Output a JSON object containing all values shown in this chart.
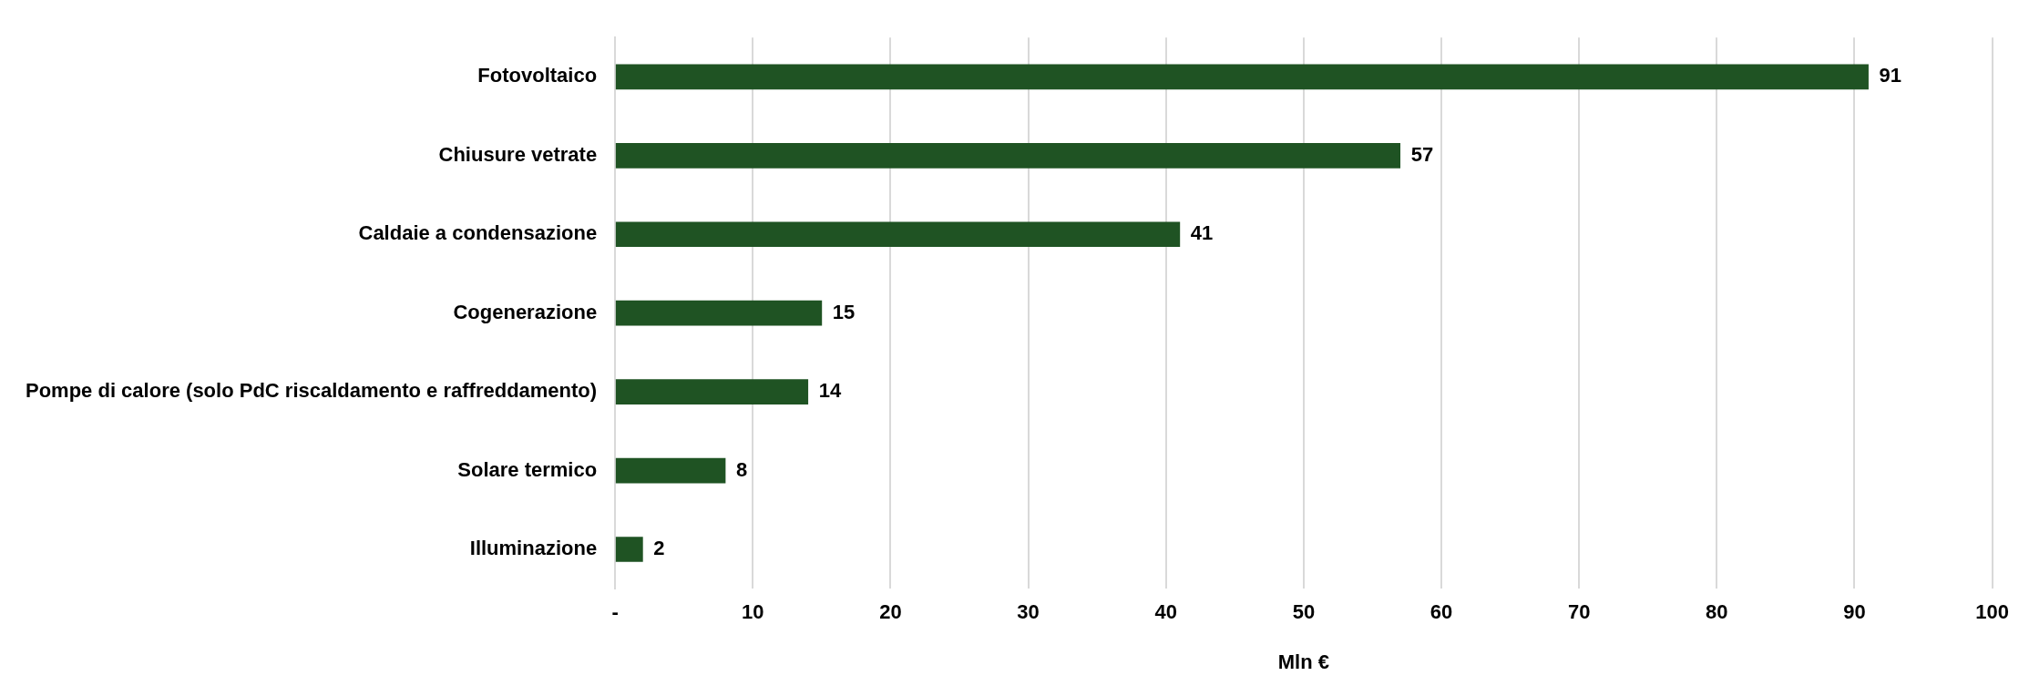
{
  "chart_data": {
    "type": "bar",
    "orientation": "horizontal",
    "xlabel": "Mln €",
    "categories": [
      "Fotovoltaico",
      "Chiusure vetrate",
      "Caldaie a condensazione",
      "Cogenerazione",
      "Pompe di calore (solo PdC riscaldamento e raffreddamento)",
      "Solare termico",
      "Illuminazione"
    ],
    "values": [
      91,
      57,
      41,
      15,
      14,
      8,
      2
    ],
    "color": "#1f5323",
    "xlim": [
      0,
      100
    ],
    "xticks": [
      {
        "value": 0,
        "label": "-"
      },
      10,
      20,
      30,
      40,
      50,
      60,
      70,
      80,
      90,
      100
    ],
    "grid": "x",
    "data_labels": true,
    "legend": false
  }
}
